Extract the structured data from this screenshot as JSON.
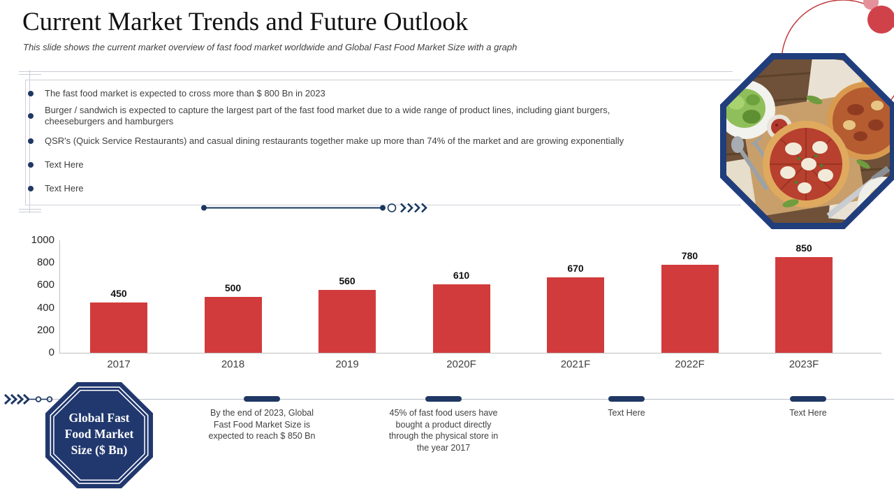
{
  "title": "Current Market Trends and Future Outlook",
  "subtitle": "This slide shows the current market overview  of fast food market worldwide  and Global Fast Food Market Size with a graph",
  "bullets": [
    "The fast food market is expected to cross more than $ 800 Bn in 2023",
    "Burger / sandwich is expected to capture the largest part of the fast food market due to a wide range of product lines, including giant burgers, cheeseburgers and hamburgers",
    "QSR's (Quick Service Restaurants) and casual dining restaurants together make up more than 74% of the market and are growing exponentially",
    "Text Here",
    "Text Here"
  ],
  "chart_data": {
    "type": "bar",
    "categories": [
      "2017",
      "2018",
      "2019",
      "2020F",
      "2021F",
      "2022F",
      "2023F"
    ],
    "values": [
      450,
      500,
      560,
      610,
      670,
      780,
      850
    ],
    "title": "Global Fast Food Market Size ($ Bn)",
    "xlabel": "",
    "ylabel": "",
    "ylim": [
      0,
      1000
    ],
    "yticks": [
      0,
      200,
      400,
      600,
      800,
      1000
    ],
    "bar_color": "#d23b3c",
    "grid": false,
    "legend": "none",
    "data_labels": true
  },
  "badge": {
    "label": "Global Fast Food Market Size ($ Bn)"
  },
  "timeline": {
    "items": [
      {
        "text": "By the end of 2023, Global Fast Food Market Size is expected to reach $ 850 Bn"
      },
      {
        "text": "45% of fast food users have bought a product directly through the physical store in the year 2017"
      },
      {
        "text": "Text Here"
      },
      {
        "text": "Text Here"
      }
    ]
  },
  "colors": {
    "accent_navy": "#1f3864",
    "octagon_blue": "#203d7c",
    "bar_red": "#d23b3c",
    "decoration_red": "#c23b3f"
  }
}
